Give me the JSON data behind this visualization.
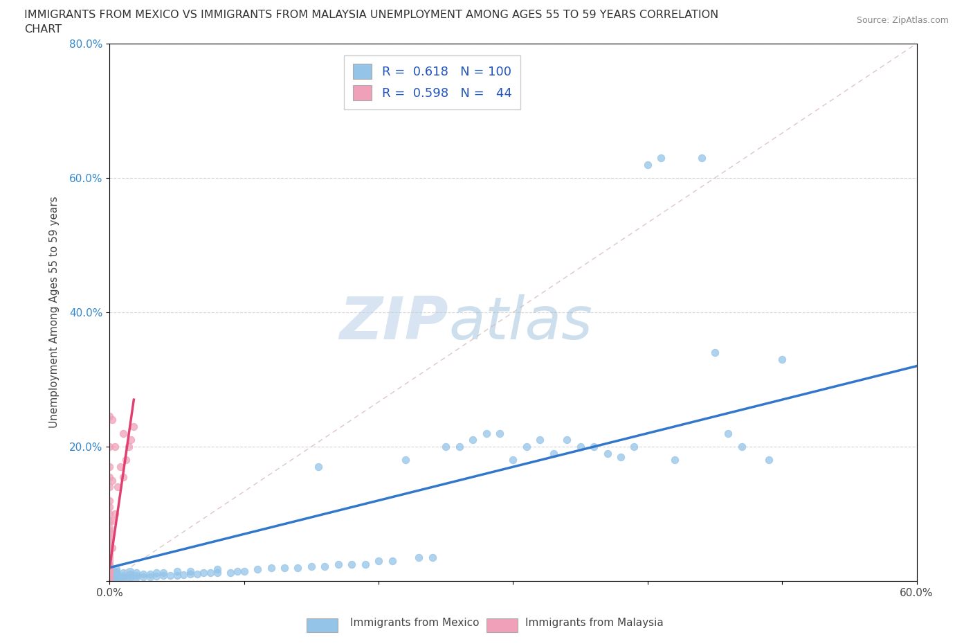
{
  "title_line1": "IMMIGRANTS FROM MEXICO VS IMMIGRANTS FROM MALAYSIA UNEMPLOYMENT AMONG AGES 55 TO 59 YEARS CORRELATION",
  "title_line2": "CHART",
  "source_text": "Source: ZipAtlas.com",
  "ylabel": "Unemployment Among Ages 55 to 59 years",
  "xlim": [
    0.0,
    0.6
  ],
  "ylim": [
    0.0,
    0.8
  ],
  "xticks": [
    0.0,
    0.1,
    0.2,
    0.3,
    0.4,
    0.5,
    0.6
  ],
  "xticklabels": [
    "0.0%",
    "",
    "",
    "",
    "",
    "",
    "60.0%"
  ],
  "yticks": [
    0.0,
    0.2,
    0.4,
    0.6,
    0.8
  ],
  "yticklabels": [
    "",
    "20.0%",
    "40.0%",
    "60.0%",
    "80.0%"
  ],
  "mexico_color": "#94c4e8",
  "malaysia_color": "#f0a0b8",
  "mexico_trend_color": "#3377cc",
  "malaysia_trend_color": "#e04070",
  "legend_R_mexico": "0.618",
  "legend_N_mexico": "100",
  "legend_R_malaysia": "0.598",
  "legend_N_malaysia": "44",
  "watermark_zip": "ZIP",
  "watermark_atlas": "atlas",
  "mexico_scatter_x": [
    0.0,
    0.0,
    0.0,
    0.0,
    0.0,
    0.0,
    0.0,
    0.0,
    0.0,
    0.0,
    0.0,
    0.0,
    0.0,
    0.0,
    0.0,
    0.0,
    0.0,
    0.0,
    0.0,
    0.0,
    0.005,
    0.005,
    0.005,
    0.005,
    0.005,
    0.005,
    0.005,
    0.005,
    0.01,
    0.01,
    0.01,
    0.01,
    0.015,
    0.015,
    0.015,
    0.015,
    0.02,
    0.02,
    0.02,
    0.025,
    0.025,
    0.03,
    0.03,
    0.035,
    0.035,
    0.04,
    0.04,
    0.045,
    0.05,
    0.05,
    0.055,
    0.06,
    0.06,
    0.065,
    0.07,
    0.075,
    0.08,
    0.08,
    0.09,
    0.095,
    0.1,
    0.11,
    0.12,
    0.13,
    0.14,
    0.15,
    0.155,
    0.16,
    0.17,
    0.18,
    0.19,
    0.2,
    0.21,
    0.22,
    0.23,
    0.24,
    0.25,
    0.26,
    0.27,
    0.28,
    0.29,
    0.3,
    0.31,
    0.32,
    0.33,
    0.34,
    0.35,
    0.36,
    0.37,
    0.38,
    0.39,
    0.4,
    0.41,
    0.42,
    0.44,
    0.45,
    0.46,
    0.47,
    0.49,
    0.5
  ],
  "mexico_scatter_y": [
    0.0,
    0.002,
    0.003,
    0.004,
    0.005,
    0.005,
    0.006,
    0.007,
    0.008,
    0.01,
    0.01,
    0.012,
    0.013,
    0.015,
    0.016,
    0.017,
    0.018,
    0.02,
    0.022,
    0.025,
    0.002,
    0.003,
    0.005,
    0.007,
    0.01,
    0.012,
    0.015,
    0.018,
    0.003,
    0.005,
    0.008,
    0.012,
    0.004,
    0.006,
    0.01,
    0.015,
    0.005,
    0.008,
    0.012,
    0.006,
    0.01,
    0.006,
    0.01,
    0.007,
    0.012,
    0.008,
    0.013,
    0.008,
    0.008,
    0.015,
    0.009,
    0.01,
    0.015,
    0.01,
    0.012,
    0.012,
    0.013,
    0.018,
    0.013,
    0.015,
    0.015,
    0.018,
    0.02,
    0.02,
    0.02,
    0.022,
    0.17,
    0.022,
    0.025,
    0.025,
    0.025,
    0.03,
    0.03,
    0.18,
    0.035,
    0.035,
    0.2,
    0.2,
    0.21,
    0.22,
    0.22,
    0.18,
    0.2,
    0.21,
    0.19,
    0.21,
    0.2,
    0.2,
    0.19,
    0.185,
    0.2,
    0.62,
    0.63,
    0.18,
    0.63,
    0.34,
    0.22,
    0.2,
    0.18,
    0.33
  ],
  "malaysia_scatter_x": [
    0.0,
    0.0,
    0.0,
    0.0,
    0.0,
    0.0,
    0.0,
    0.0,
    0.0,
    0.0,
    0.0,
    0.0,
    0.0,
    0.0,
    0.0,
    0.0,
    0.0,
    0.0,
    0.0,
    0.0,
    0.0,
    0.0,
    0.0,
    0.0,
    0.0,
    0.0,
    0.0,
    0.0,
    0.0,
    0.0,
    0.002,
    0.002,
    0.002,
    0.002,
    0.004,
    0.004,
    0.006,
    0.008,
    0.01,
    0.01,
    0.012,
    0.014,
    0.016,
    0.018
  ],
  "malaysia_scatter_y": [
    0.0,
    0.005,
    0.008,
    0.01,
    0.012,
    0.015,
    0.017,
    0.02,
    0.022,
    0.025,
    0.03,
    0.035,
    0.04,
    0.045,
    0.05,
    0.055,
    0.06,
    0.065,
    0.07,
    0.075,
    0.08,
    0.09,
    0.1,
    0.11,
    0.12,
    0.14,
    0.155,
    0.17,
    0.2,
    0.245,
    0.05,
    0.09,
    0.15,
    0.24,
    0.1,
    0.2,
    0.14,
    0.17,
    0.155,
    0.22,
    0.18,
    0.2,
    0.21,
    0.23
  ],
  "mexico_trend_x0": 0.0,
  "mexico_trend_x1": 0.6,
  "mexico_trend_y0": 0.02,
  "mexico_trend_y1": 0.32,
  "malaysia_trend_x0": 0.0,
  "malaysia_trend_x1": 0.018,
  "malaysia_trend_y0": 0.02,
  "malaysia_trend_y1": 0.27
}
